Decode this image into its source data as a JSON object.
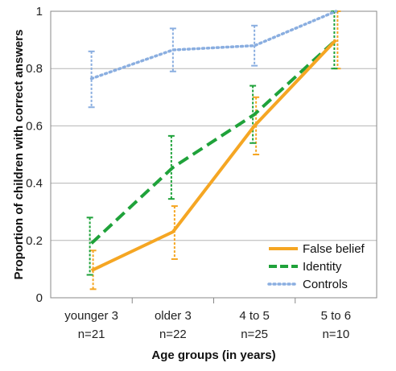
{
  "chart_data": {
    "type": "line",
    "xlabel": "Age groups (in years)",
    "ylabel": "Proportion of children with correct answers",
    "ylim": [
      0,
      1
    ],
    "yticks": [
      "0",
      "0.2",
      "0.4",
      "0.6",
      "0.8",
      "1"
    ],
    "grid": "horizontal",
    "legend_position": "bottom-right",
    "categories": [
      {
        "line1": "younger 3",
        "line2": "n=21"
      },
      {
        "line1": "older 3",
        "line2": "n=22"
      },
      {
        "line1": "4 to 5",
        "line2": "n=25"
      },
      {
        "line1": "5 to 6",
        "line2": "n=10"
      }
    ],
    "series": [
      {
        "name": "False belief",
        "color": "#f5a623",
        "style": "solid",
        "values": [
          0.095,
          0.23,
          0.6,
          0.9
        ],
        "error_low": [
          0.03,
          0.135,
          0.5,
          0.8
        ],
        "error_high": [
          0.165,
          0.32,
          0.7,
          1.0
        ]
      },
      {
        "name": "Identity",
        "color": "#1fa23a",
        "style": "dashed",
        "values": [
          0.19,
          0.455,
          0.64,
          0.9
        ],
        "error_low": [
          0.08,
          0.345,
          0.54,
          0.8
        ],
        "error_high": [
          0.28,
          0.565,
          0.74,
          1.0
        ]
      },
      {
        "name": "Controls",
        "color": "#8aaee0",
        "style": "dotted",
        "values": [
          0.765,
          0.865,
          0.88,
          1.0
        ],
        "error_low": [
          0.665,
          0.79,
          0.81,
          1.0
        ],
        "error_high": [
          0.86,
          0.94,
          0.95,
          1.0
        ]
      }
    ]
  }
}
